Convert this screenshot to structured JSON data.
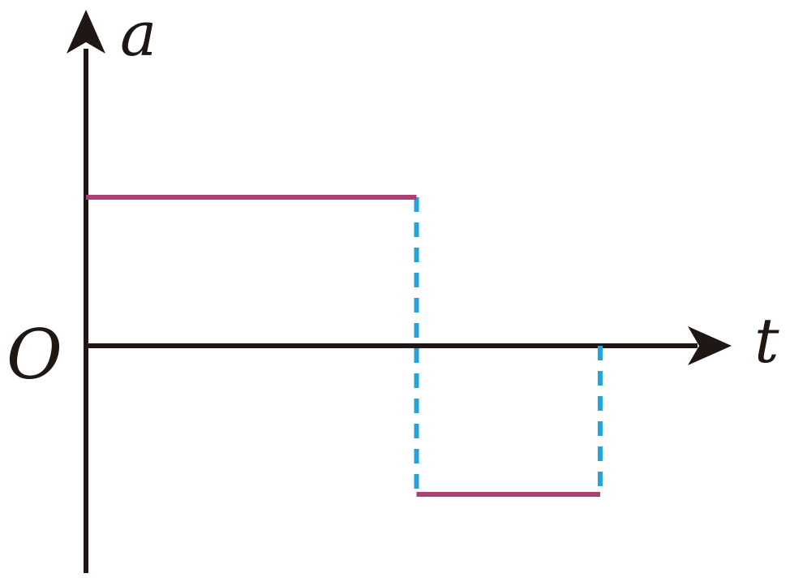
{
  "chart_data": {
    "type": "line",
    "xlabel": "t",
    "ylabel": "a",
    "origin_label": "O",
    "x_range": [
      0,
      4
    ],
    "y_range": [
      -1.3,
      1.3
    ],
    "segments": [
      {
        "x": [
          0,
          1.8
        ],
        "y": [
          1,
          1
        ]
      },
      {
        "x": [
          1.8,
          2.8
        ],
        "y": [
          -1,
          -1
        ]
      }
    ],
    "guides": [
      {
        "x": [
          1.8,
          1.8
        ],
        "y": [
          1,
          -1
        ]
      },
      {
        "x": [
          2.8,
          2.8
        ],
        "y": [
          0,
          -1
        ]
      }
    ],
    "colors": {
      "axis": "#1e1714",
      "segment": "#ad3f74",
      "guide": "#23a3da"
    }
  }
}
